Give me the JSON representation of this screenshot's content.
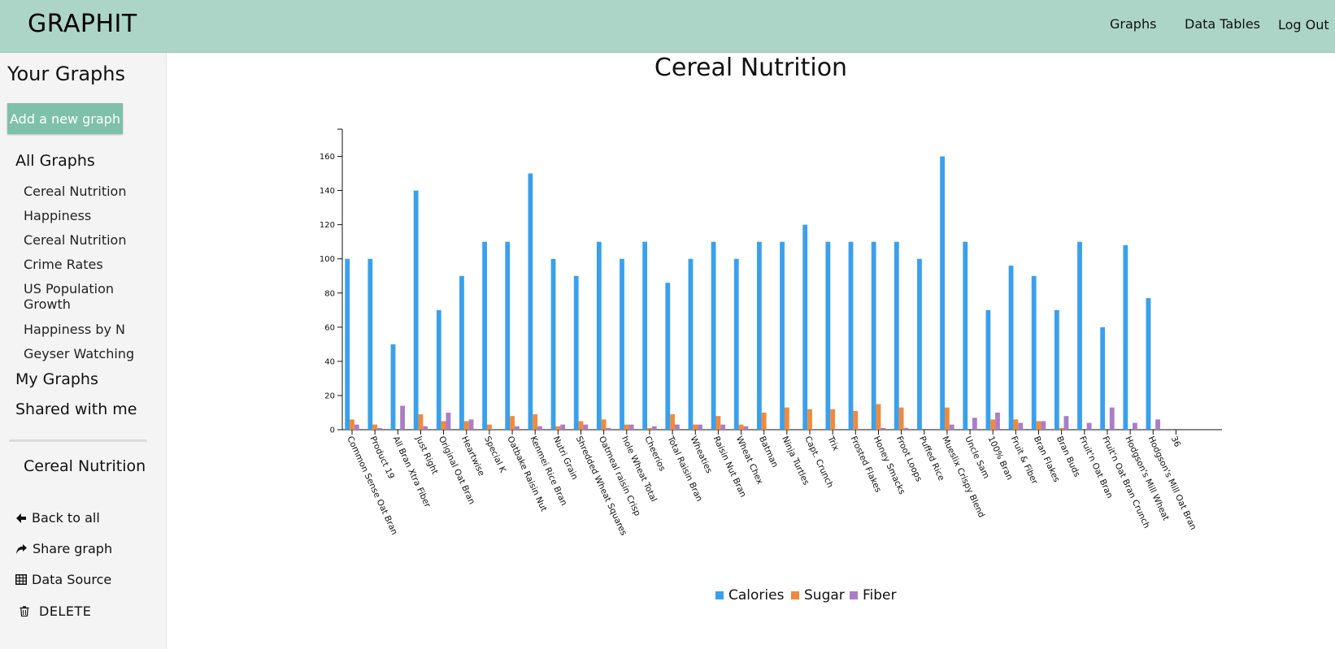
{
  "app": {
    "title": "GRAPHIT"
  },
  "nav": {
    "graphs": "Graphs",
    "data_tables": "Data Tables",
    "log_out": "Log Out"
  },
  "sidebar": {
    "title": "Your Graphs",
    "add_button": "Add a new graph",
    "all_graphs": "All Graphs",
    "items": [
      "Cereal Nutrition",
      "Happiness",
      "Cereal Nutrition",
      "Crime Rates",
      "US Population Growth",
      "Happiness by N",
      "Geyser Watching"
    ],
    "my_graphs": "My Graphs",
    "shared": "Shared with me",
    "current_graph": "Cereal Nutrition",
    "actions": {
      "back": "Back to all",
      "share": "Share graph",
      "source": "Data Source",
      "delete": "DELETE"
    }
  },
  "chart_data": {
    "type": "bar",
    "title": "Cereal Nutrition",
    "xlabel": "",
    "ylabel": "",
    "ylim": [
      0,
      175
    ],
    "yticks": [
      0,
      20,
      40,
      60,
      80,
      100,
      120,
      140,
      160
    ],
    "grid": false,
    "legend": "bottom",
    "categories": [
      "Common Sense Oat Bran",
      "Product 19",
      "All Bran Xtra Fiber",
      "Just Right",
      "Original Oat Bran",
      "Heartwise",
      "Special K",
      "Oatbake Raisin Nut",
      "Kenmei Rice Bran",
      "Nutri Grain",
      "Shredded Wheat Squares",
      "Oatmeal raisin Crisp",
      "hole Wheat Total",
      "Cheerios",
      "Total Raisin Bran",
      "Wheaties",
      "Raisin Nut Bran",
      "Wheat Chex",
      "Batman",
      "Ninja Turtles",
      "Capt. Crunch",
      "Trix",
      "Frosted Flakes",
      "Honey Smacks",
      "Froot Loops",
      "Puffed Rice",
      "Mueslix Crispy Blend",
      "Uncle Sam",
      "100% Bran",
      "Fruit & Fiber",
      "Bran Flakes",
      "Bran Buds",
      "Fruit'n Oat Bran",
      "Fruit'n Oat Bran Crunch",
      "Hodgson's Mill Wheat",
      "Hodgson's Mill Oat Bran",
      "36"
    ],
    "series": [
      {
        "name": "Calories",
        "color": "#3aa0ec",
        "values": [
          100,
          100,
          50,
          140,
          70,
          90,
          110,
          110,
          150,
          100,
          90,
          110,
          100,
          110,
          86,
          100,
          110,
          100,
          110,
          110,
          120,
          110,
          110,
          110,
          110,
          100,
          160,
          110,
          70,
          96,
          90,
          70,
          110,
          60,
          108,
          77,
          0
        ]
      },
      {
        "name": "Sugar",
        "color": "#f08a3c",
        "values": [
          6,
          3,
          0,
          9,
          5,
          5,
          3,
          8,
          9,
          2,
          5,
          6,
          3,
          1,
          9,
          3,
          8,
          3,
          10,
          13,
          12,
          12,
          11,
          15,
          13,
          0,
          13,
          0,
          6,
          6,
          5,
          1,
          0,
          0,
          0,
          0,
          0
        ]
      },
      {
        "name": "Fiber",
        "color": "#a97ec9",
        "values": [
          3,
          1,
          14,
          2,
          10,
          6,
          0,
          2,
          2,
          3,
          3,
          1,
          3,
          2,
          3,
          3,
          3,
          2,
          0,
          0,
          0,
          0,
          0,
          1,
          1,
          0,
          3,
          7,
          10,
          4,
          5,
          8,
          4,
          13,
          4,
          6,
          0
        ]
      }
    ]
  }
}
